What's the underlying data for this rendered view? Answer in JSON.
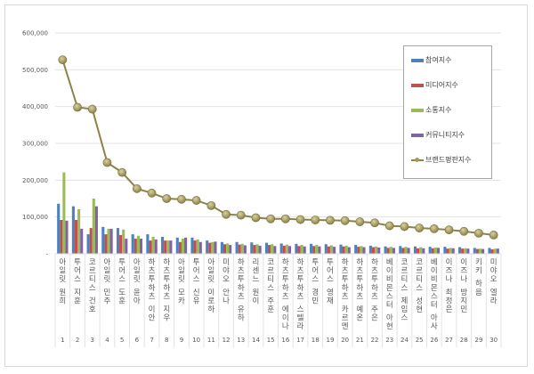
{
  "chart_data": {
    "type": "bar",
    "title": "",
    "xlabel": "",
    "ylabel": "",
    "ylim": [
      0,
      600000
    ],
    "yticks": [
      0,
      100000,
      200000,
      300000,
      400000,
      500000,
      600000
    ],
    "ytick_labels": [
      "-",
      "100,000",
      "200,000",
      "300,000",
      "400,000",
      "500,000",
      "600,000"
    ],
    "grid": true,
    "legend_position": "upper right",
    "ranks": [
      1,
      2,
      3,
      4,
      5,
      6,
      7,
      8,
      9,
      10,
      11,
      12,
      13,
      14,
      15,
      16,
      17,
      18,
      19,
      20,
      21,
      22,
      23,
      24,
      25,
      26,
      27,
      28,
      29,
      30
    ],
    "categories": [
      "아일릿 원희",
      "투어스 지훈",
      "코르티스 건호",
      "아일릿 민주",
      "투어스 도훈",
      "아일릿 윤아",
      "하츠투하츠 이안",
      "하츠투하츠 지우",
      "아일릿 모카",
      "투어스 신유",
      "아일릿 이로하",
      "미야오 안나",
      "하츠투하츠 유하",
      "리센느 원이",
      "코르티스 주훈",
      "하츠투하츠 에이나",
      "하츠투하츠 스텔라",
      "투어스 경민",
      "투어스 영재",
      "하츠투하츠 카르멘",
      "하츠투하츠 예온",
      "하츠투하츠 주은",
      "베이비몬스터 아현",
      "코르티스 제임스",
      "코르티스 성현",
      "베이비몬스터 아사",
      "이즈나 최정은",
      "이즈나 방지민",
      "키키 하음",
      "미야오 엘라"
    ],
    "series": [
      {
        "name": "참여지수",
        "type": "bar",
        "color": "#4f81bd",
        "values": [
          136000,
          129000,
          53000,
          73000,
          70000,
          53000,
          53000,
          46000,
          44000,
          44000,
          36000,
          32000,
          32000,
          31000,
          30000,
          28000,
          27000,
          27000,
          26000,
          25000,
          24000,
          22000,
          20000,
          21000,
          20000,
          19000,
          19000,
          18000,
          16000,
          16000
        ]
      },
      {
        "name": "미디어지수",
        "type": "bar",
        "color": "#c0504d",
        "values": [
          92000,
          92000,
          70000,
          53000,
          51000,
          41000,
          36000,
          36000,
          32000,
          36000,
          30000,
          26000,
          25000,
          24000,
          24000,
          22000,
          21000,
          21000,
          20000,
          20000,
          19000,
          18000,
          16000,
          16000,
          15000,
          15000,
          14000,
          14000,
          13000,
          12000
        ]
      },
      {
        "name": "소통지수",
        "type": "bar",
        "color": "#9bbb59",
        "values": [
          221000,
          121000,
          150000,
          68000,
          66000,
          49000,
          46000,
          36000,
          41000,
          39000,
          32000,
          28000,
          27000,
          26000,
          26000,
          25000,
          24000,
          24000,
          23000,
          22000,
          21000,
          20000,
          19000,
          19000,
          18000,
          17000,
          16000,
          15000,
          14000,
          14000
        ]
      },
      {
        "name": "커뮤니티지수",
        "type": "bar",
        "color": "#8064a2",
        "values": [
          90000,
          68000,
          129000,
          68000,
          41000,
          41000,
          39000,
          36000,
          44000,
          32000,
          33000,
          24000,
          23000,
          22000,
          21000,
          21000,
          20000,
          20000,
          19000,
          18000,
          18000,
          17000,
          16000,
          16000,
          15000,
          16000,
          15000,
          14000,
          13000,
          14000
        ]
      },
      {
        "name": "브랜드평판지수",
        "type": "line",
        "color": "#8c8348",
        "values": [
          527000,
          398000,
          393000,
          248000,
          221000,
          177000,
          165000,
          150000,
          148000,
          145000,
          131000,
          107000,
          105000,
          98000,
          95000,
          95000,
          93000,
          92000,
          91000,
          90000,
          87000,
          84000,
          76000,
          74000,
          70000,
          68000,
          65000,
          61000,
          56000,
          51000
        ]
      }
    ]
  }
}
